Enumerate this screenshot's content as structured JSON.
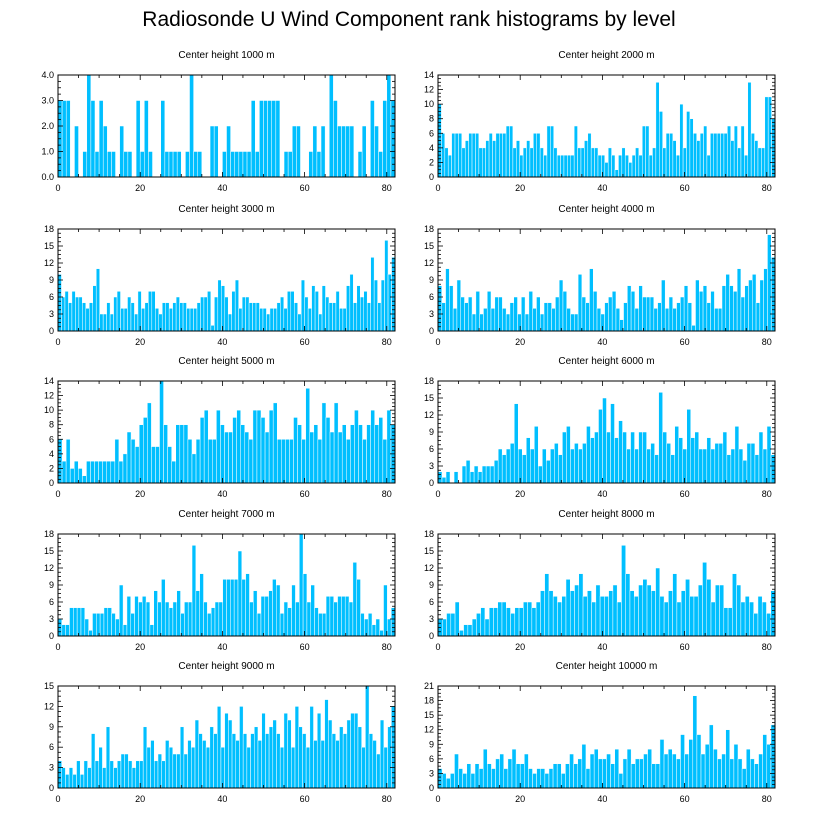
{
  "figure": {
    "title": "Radiosonde U Wind Component rank histograms by level",
    "bar_color": "#00bfff",
    "background": "#ffffff"
  },
  "chart_data": [
    {
      "type": "bar",
      "title": "Center height 1000 m",
      "x_start": 0,
      "xlim": [
        0,
        82
      ],
      "xticks": [
        0,
        20,
        40,
        60,
        80
      ],
      "ylim": [
        0,
        4
      ],
      "yticks": [
        0,
        1,
        2,
        3,
        4
      ],
      "ytick_labels": [
        "0.0",
        "1.0",
        "2.0",
        "3.0",
        "4.0"
      ],
      "values": [
        3,
        3,
        3,
        0,
        2,
        0,
        1,
        4,
        3,
        1,
        3,
        2,
        1,
        1,
        0,
        2,
        1,
        1,
        0,
        3,
        1,
        3,
        1,
        0,
        0,
        3,
        1,
        1,
        1,
        1,
        0,
        1,
        4,
        1,
        1,
        0,
        0,
        2,
        2,
        0,
        1,
        2,
        1,
        1,
        1,
        1,
        1,
        3,
        1,
        3,
        3,
        3,
        3,
        3,
        0,
        1,
        1,
        2,
        2,
        0,
        0,
        1,
        2,
        1,
        2,
        0,
        4,
        3,
        2,
        2,
        2,
        2,
        0,
        1,
        2,
        0,
        3,
        2,
        1,
        3,
        4,
        3
      ]
    },
    {
      "type": "bar",
      "title": "Center height 2000 m",
      "x_start": 0,
      "xlim": [
        0,
        82
      ],
      "xticks": [
        0,
        20,
        40,
        60,
        80
      ],
      "ylim": [
        0,
        14
      ],
      "yticks": [
        0,
        2,
        4,
        6,
        8,
        10,
        12,
        14
      ],
      "ytick_labels": [
        "0",
        "2",
        "4",
        "6",
        "8",
        "10",
        "12",
        "14"
      ],
      "values": [
        10,
        6,
        4,
        3,
        6,
        6,
        6,
        4,
        5,
        6,
        6,
        6,
        4,
        4,
        5,
        6,
        5,
        6,
        6,
        6,
        7,
        7,
        4,
        5,
        3,
        4,
        5,
        4,
        6,
        6,
        4,
        3,
        7,
        7,
        4,
        3,
        3,
        3,
        3,
        3,
        7,
        4,
        4,
        5,
        6,
        4,
        4,
        3,
        3,
        2,
        4,
        3,
        1,
        3,
        4,
        3,
        2,
        3,
        4,
        3,
        7,
        7,
        3,
        4,
        13,
        9,
        4,
        6,
        6,
        5,
        3,
        10,
        4,
        9,
        8,
        6,
        5,
        6,
        7,
        3,
        6,
        6,
        6,
        6,
        6,
        7,
        5,
        7,
        4,
        7,
        3,
        13,
        6,
        5,
        4,
        4,
        11,
        11,
        8
      ]
    },
    {
      "type": "bar",
      "title": "Center height 3000 m",
      "x_start": 0,
      "xlim": [
        0,
        82
      ],
      "xticks": [
        0,
        20,
        40,
        60,
        80
      ],
      "ylim": [
        0,
        18
      ],
      "yticks": [
        0,
        3,
        6,
        9,
        12,
        15,
        18
      ],
      "ytick_labels": [
        "0",
        "3",
        "6",
        "9",
        "12",
        "15",
        "18"
      ],
      "values": [
        10,
        6,
        7,
        5,
        7,
        6,
        6,
        5,
        4,
        5,
        8,
        11,
        3,
        3,
        5,
        3,
        6,
        7,
        4,
        4,
        6,
        5,
        3,
        7,
        4,
        5,
        7,
        7,
        4,
        3,
        5,
        5,
        4,
        5,
        6,
        5,
        5,
        4,
        4,
        4,
        5,
        6,
        6,
        7,
        1,
        6,
        9,
        8,
        6,
        3,
        7,
        9,
        4,
        6,
        6,
        5,
        5,
        5,
        4,
        4,
        3,
        4,
        4,
        5,
        6,
        4,
        7,
        7,
        5,
        3,
        9,
        6,
        4,
        8,
        7,
        3,
        8,
        6,
        5,
        5,
        7,
        4,
        4,
        8,
        10,
        5,
        8,
        6,
        7,
        5,
        13,
        9,
        5,
        9,
        16,
        10,
        13
      ]
    },
    {
      "type": "bar",
      "title": "Center height 4000 m",
      "x_start": 0,
      "xlim": [
        0,
        82
      ],
      "xticks": [
        0,
        20,
        40,
        60,
        80
      ],
      "ylim": [
        0,
        18
      ],
      "yticks": [
        0,
        3,
        6,
        9,
        12,
        15,
        18
      ],
      "ytick_labels": [
        "0",
        "3",
        "6",
        "9",
        "12",
        "15",
        "18"
      ],
      "values": [
        8,
        5,
        11,
        8,
        4,
        9,
        6,
        5,
        6,
        3,
        7,
        3,
        4,
        7,
        4,
        6,
        6,
        4,
        3,
        5,
        6,
        3,
        6,
        3,
        7,
        4,
        6,
        3,
        5,
        5,
        4,
        6,
        9,
        7,
        4,
        3,
        3,
        10,
        6,
        5,
        11,
        7,
        4,
        3,
        5,
        6,
        7,
        4,
        2,
        5,
        8,
        7,
        4,
        8,
        6,
        6,
        6,
        4,
        5,
        9,
        4,
        6,
        4,
        5,
        6,
        8,
        5,
        1,
        9,
        7,
        8,
        5,
        7,
        4,
        4,
        8,
        10,
        8,
        7,
        11,
        6,
        8,
        9,
        10,
        5,
        9,
        11,
        17,
        13
      ]
    },
    {
      "type": "bar",
      "title": "Center height 5000 m",
      "x_start": 0,
      "xlim": [
        0,
        82
      ],
      "xticks": [
        0,
        20,
        40,
        60,
        80
      ],
      "ylim": [
        0,
        14
      ],
      "yticks": [
        0,
        2,
        4,
        6,
        8,
        10,
        12,
        14
      ],
      "ytick_labels": [
        "0",
        "2",
        "4",
        "6",
        "8",
        "10",
        "12",
        "14"
      ],
      "values": [
        6,
        3,
        6,
        2,
        3,
        2,
        1,
        3,
        3,
        3,
        3,
        3,
        3,
        3,
        6,
        3,
        4,
        7,
        6,
        5,
        8,
        9,
        11,
        5,
        5,
        14,
        8,
        5,
        3,
        8,
        8,
        8,
        6,
        4,
        6,
        9,
        10,
        6,
        6,
        10,
        8,
        7,
        7,
        9,
        10,
        8,
        7,
        6,
        10,
        10,
        9,
        7,
        10,
        11,
        6,
        6,
        6,
        6,
        9,
        8,
        6,
        13,
        7,
        8,
        6,
        11,
        9,
        7,
        11,
        7,
        8,
        6,
        8,
        10,
        8,
        6,
        8,
        10,
        8,
        9,
        6,
        10,
        8
      ]
    },
    {
      "type": "bar",
      "title": "Center height 6000 m",
      "x_start": 0,
      "xlim": [
        0,
        82
      ],
      "xticks": [
        0,
        20,
        40,
        60,
        80
      ],
      "ylim": [
        0,
        18
      ],
      "yticks": [
        0,
        3,
        6,
        9,
        12,
        15,
        18
      ],
      "ytick_labels": [
        "0",
        "3",
        "6",
        "9",
        "12",
        "15",
        "18"
      ],
      "values": [
        2,
        1,
        2,
        0,
        2,
        0,
        3,
        4,
        2,
        3,
        2,
        3,
        3,
        3,
        4,
        6,
        5,
        6,
        7,
        14,
        6,
        5,
        8,
        6,
        10,
        3,
        6,
        4,
        6,
        7,
        5,
        9,
        10,
        6,
        7,
        6,
        7,
        10,
        8,
        9,
        13,
        15,
        9,
        14,
        8,
        11,
        9,
        6,
        9,
        6,
        9,
        9,
        6,
        7,
        5,
        16,
        9,
        7,
        5,
        10,
        8,
        6,
        13,
        8,
        9,
        6,
        6,
        8,
        6,
        7,
        7,
        9,
        5,
        6,
        10,
        6,
        4,
        7,
        7,
        5,
        9,
        6,
        10,
        5
      ]
    },
    {
      "type": "bar",
      "title": "Center height 7000 m",
      "x_start": 0,
      "xlim": [
        0,
        82
      ],
      "xticks": [
        0,
        20,
        40,
        60,
        80
      ],
      "ylim": [
        0,
        18
      ],
      "yticks": [
        0,
        3,
        6,
        9,
        12,
        15,
        18
      ],
      "ytick_labels": [
        "0",
        "3",
        "6",
        "9",
        "12",
        "15",
        "18"
      ],
      "values": [
        3,
        2,
        2,
        5,
        5,
        5,
        5,
        3,
        1,
        4,
        4,
        4,
        5,
        5,
        4,
        3,
        9,
        2,
        7,
        4,
        7,
        6,
        7,
        6,
        2,
        8,
        6,
        10,
        6,
        5,
        6,
        8,
        4,
        6,
        6,
        16,
        8,
        11,
        6,
        4,
        5,
        6,
        6,
        10,
        10,
        10,
        10,
        15,
        10,
        11,
        6,
        8,
        4,
        7,
        7,
        8,
        10,
        9,
        4,
        6,
        5,
        9,
        6,
        18,
        11,
        6,
        9,
        5,
        4,
        4,
        7,
        7,
        6,
        7,
        7,
        7,
        6,
        13,
        10,
        4,
        3,
        4,
        2,
        3,
        1,
        9,
        3,
        5
      ]
    },
    {
      "type": "bar",
      "title": "Center height 8000 m",
      "x_start": 0,
      "xlim": [
        0,
        82
      ],
      "xticks": [
        0,
        20,
        40,
        60,
        80
      ],
      "ylim": [
        0,
        18
      ],
      "yticks": [
        0,
        3,
        6,
        9,
        12,
        15,
        18
      ],
      "ytick_labels": [
        "0",
        "3",
        "6",
        "9",
        "12",
        "15",
        "18"
      ],
      "values": [
        3,
        3,
        4,
        4,
        6,
        1,
        2,
        2,
        3,
        4,
        5,
        3,
        5,
        5,
        6,
        6,
        5,
        4,
        5,
        5,
        6,
        6,
        5,
        6,
        8,
        11,
        8,
        7,
        6,
        7,
        10,
        8,
        9,
        11,
        7,
        8,
        6,
        9,
        7,
        7,
        8,
        9,
        6,
        16,
        11,
        8,
        7,
        9,
        10,
        9,
        8,
        12,
        7,
        6,
        8,
        11,
        6,
        8,
        10,
        7,
        7,
        9,
        13,
        10,
        6,
        9,
        9,
        5,
        5,
        11,
        9,
        6,
        7,
        6,
        4,
        7,
        6,
        4,
        8
      ]
    },
    {
      "type": "bar",
      "title": "Center height 9000 m",
      "x_start": 0,
      "xlim": [
        0,
        82
      ],
      "xticks": [
        0,
        20,
        40,
        60,
        80
      ],
      "ylim": [
        0,
        15
      ],
      "yticks": [
        0,
        3,
        6,
        9,
        12,
        15
      ],
      "ytick_labels": [
        "0",
        "3",
        "6",
        "9",
        "12",
        "15"
      ],
      "values": [
        4,
        3,
        2,
        3,
        2,
        4,
        2,
        4,
        3,
        8,
        4,
        6,
        3,
        9,
        4,
        3,
        4,
        5,
        5,
        4,
        3,
        4,
        4,
        9,
        6,
        7,
        4,
        5,
        4,
        7,
        6,
        5,
        5,
        9,
        5,
        7,
        6,
        10,
        8,
        7,
        6,
        9,
        8,
        12,
        6,
        11,
        10,
        8,
        7,
        12,
        8,
        6,
        8,
        9,
        7,
        11,
        8,
        9,
        10,
        8,
        6,
        11,
        10,
        6,
        12,
        9,
        8,
        6,
        12,
        7,
        11,
        7,
        13,
        10,
        8,
        7,
        9,
        8,
        10,
        11,
        11,
        9,
        6,
        15,
        8,
        7,
        5,
        10,
        6,
        9,
        12
      ]
    },
    {
      "type": "bar",
      "title": "Center height 10000 m",
      "x_start": 0,
      "xlim": [
        0,
        82
      ],
      "xticks": [
        0,
        20,
        40,
        60,
        80
      ],
      "ylim": [
        0,
        21
      ],
      "yticks": [
        0,
        3,
        6,
        9,
        12,
        15,
        18,
        21
      ],
      "ytick_labels": [
        "0",
        "3",
        "6",
        "9",
        "12",
        "15",
        "18",
        "21"
      ],
      "values": [
        4,
        3,
        2,
        3,
        7,
        4,
        3,
        5,
        3,
        5,
        4,
        8,
        5,
        4,
        6,
        7,
        4,
        6,
        8,
        5,
        5,
        7,
        4,
        3,
        4,
        4,
        3,
        4,
        5,
        5,
        3,
        5,
        7,
        5,
        6,
        9,
        4,
        7,
        8,
        6,
        6,
        7,
        5,
        8,
        3,
        6,
        8,
        5,
        6,
        6,
        7,
        8,
        5,
        5,
        10,
        7,
        8,
        7,
        6,
        11,
        7,
        10,
        19,
        11,
        7,
        9,
        13,
        8,
        6,
        7,
        12,
        6,
        9,
        6,
        4,
        8,
        6,
        5,
        7,
        11,
        9,
        13
      ]
    }
  ]
}
